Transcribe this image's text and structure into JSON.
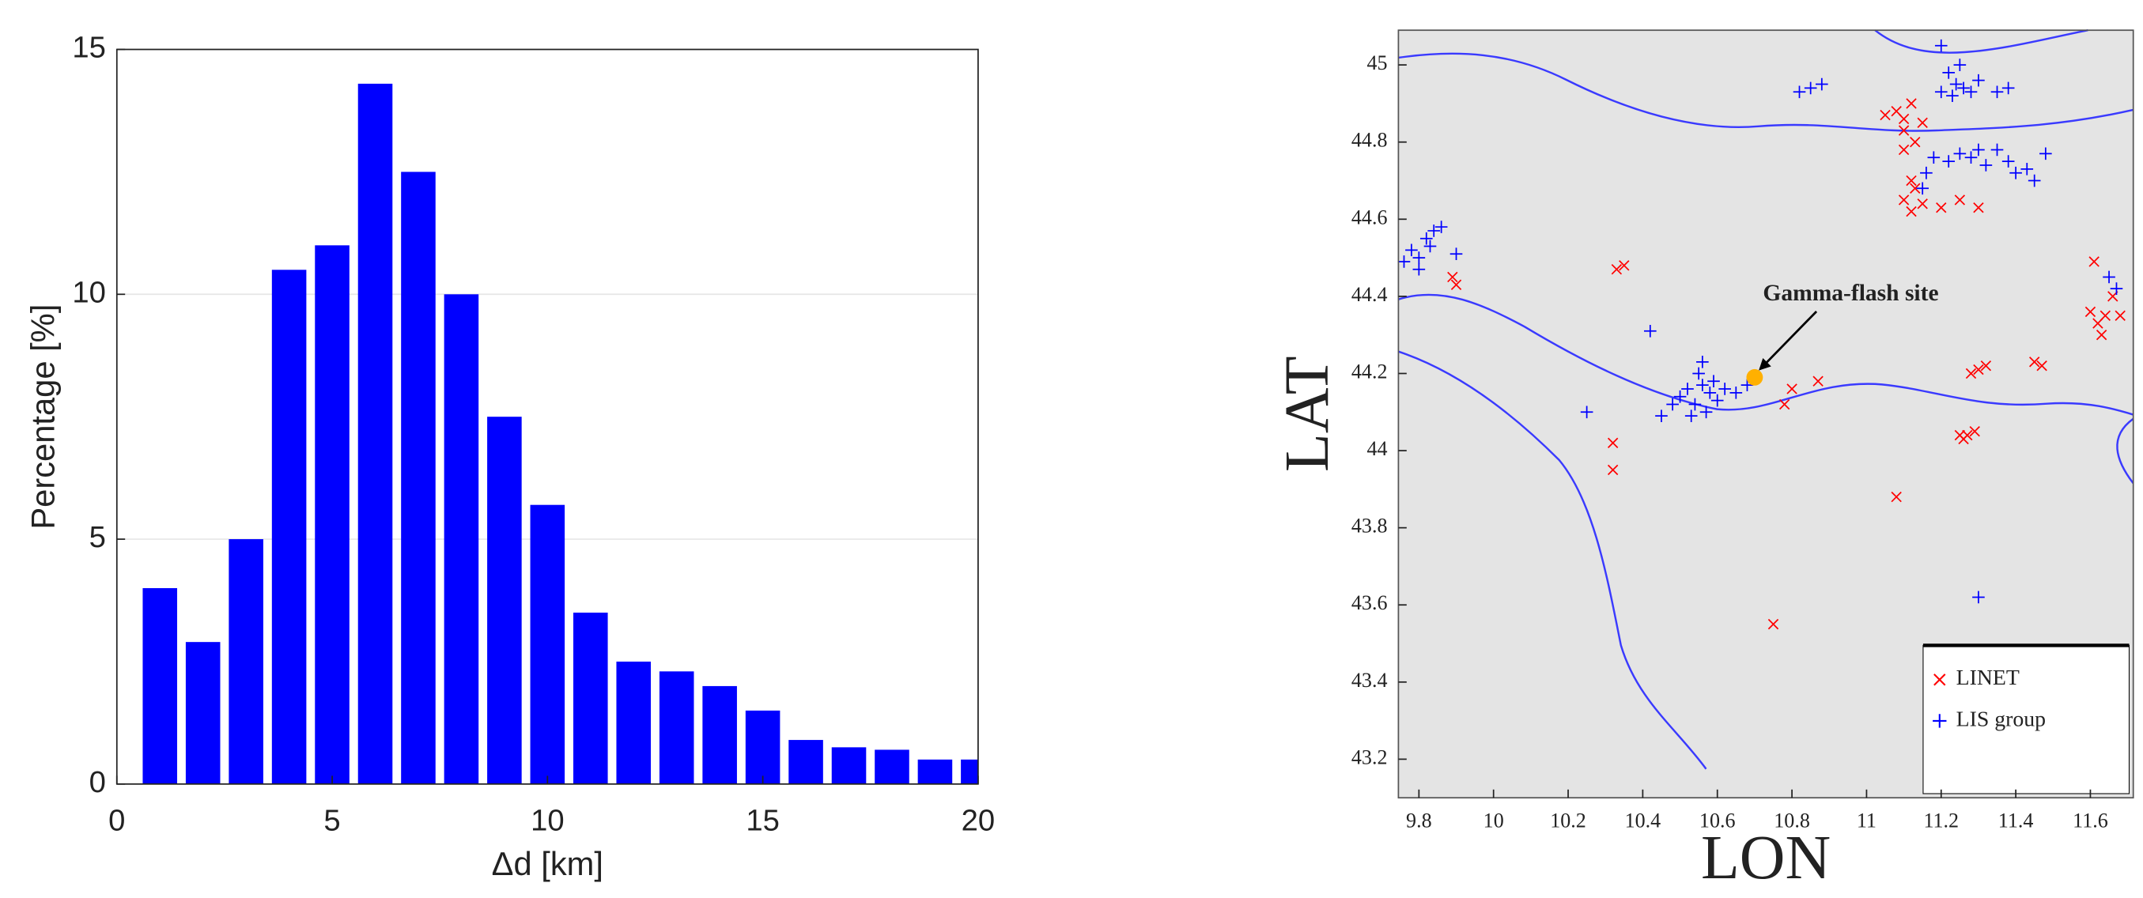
{
  "chart_data": [
    {
      "type": "bar",
      "xlabel": "Δd [km]",
      "ylabel": "Percentage [%]",
      "x": [
        1,
        2,
        3,
        4,
        5,
        6,
        7,
        8,
        9,
        10,
        11,
        12,
        13,
        14,
        15,
        16,
        17,
        18,
        19,
        20
      ],
      "values": [
        4,
        2.9,
        5,
        10.5,
        11,
        14.3,
        12.5,
        10,
        7.5,
        5.7,
        3.5,
        2.5,
        2.3,
        2.0,
        1.5,
        0.9,
        0.75,
        0.7,
        0.5,
        0.5
      ],
      "color": "#0000ff",
      "xlim": [
        0,
        20
      ],
      "ylim": [
        0,
        15
      ],
      "xticks": [
        0,
        5,
        10,
        15,
        20
      ],
      "yticks": [
        0,
        5,
        10,
        15
      ],
      "grid": true
    },
    {
      "type": "scatter",
      "xlabel": "LON",
      "ylabel": "LAT",
      "xlim": [
        9.745,
        11.715
      ],
      "ylim": [
        43.1,
        45.09
      ],
      "xticks": [
        9.8,
        10,
        10.2,
        10.4,
        10.6,
        10.8,
        11,
        11.2,
        11.4,
        11.6
      ],
      "yticks": [
        43.2,
        43.4,
        43.6,
        43.8,
        44,
        44.2,
        44.4,
        44.6,
        44.8,
        45
      ],
      "legend": "lower right",
      "series": [
        {
          "name": "LINET",
          "color": "#ff0000",
          "marker": "x",
          "x": [
            11.08,
            11.1,
            11.12,
            11.05,
            11.1,
            11.13,
            11.15,
            11.1,
            11.12,
            11.1,
            11.12,
            11.15,
            11.2,
            11.25,
            11.3,
            11.13,
            11.6,
            11.62,
            11.64,
            11.66,
            11.68,
            11.61,
            11.63,
            11.25,
            11.27,
            11.29,
            11.26,
            11.3,
            11.32,
            11.28,
            11.45,
            11.47,
            10.35,
            10.33,
            9.9,
            9.89,
            10.32,
            10.32,
            10.8,
            10.78,
            10.87,
            11.08,
            10.75
          ],
          "values": [
            44.88,
            44.86,
            44.9,
            44.87,
            44.83,
            44.8,
            44.85,
            44.78,
            44.7,
            44.65,
            44.62,
            44.64,
            44.63,
            44.65,
            44.63,
            44.68,
            44.36,
            44.33,
            44.35,
            44.4,
            44.35,
            44.49,
            44.3,
            44.04,
            44.04,
            44.05,
            44.03,
            44.21,
            44.22,
            44.2,
            44.23,
            44.22,
            44.48,
            44.47,
            44.43,
            44.45,
            44.02,
            43.95,
            44.16,
            44.12,
            44.18,
            43.88,
            43.55
          ]
        },
        {
          "name": "LIS group",
          "color": "#0000ff",
          "marker": "+",
          "x": [
            9.78,
            9.8,
            9.82,
            9.76,
            9.84,
            9.86,
            9.8,
            9.9,
            9.83,
            10.5,
            10.52,
            10.54,
            10.56,
            10.58,
            10.6,
            10.62,
            10.55,
            10.57,
            10.53,
            10.48,
            10.65,
            10.59,
            10.56,
            10.45,
            10.68,
            10.42,
            10.25,
            11.3,
            10.82,
            10.85,
            10.88,
            11.2,
            11.22,
            11.24,
            11.26,
            11.28,
            11.23,
            11.3,
            11.35,
            11.38,
            11.2,
            11.25,
            11.18,
            11.22,
            11.25,
            11.28,
            11.32,
            11.35,
            11.38,
            11.4,
            11.43,
            11.48,
            11.3,
            11.16,
            11.15,
            11.45,
            11.65,
            11.67
          ],
          "values": [
            44.52,
            44.5,
            44.55,
            44.49,
            44.57,
            44.58,
            44.47,
            44.51,
            44.53,
            44.14,
            44.16,
            44.12,
            44.17,
            44.15,
            44.13,
            44.16,
            44.2,
            44.1,
            44.09,
            44.12,
            44.15,
            44.18,
            44.23,
            44.09,
            44.17,
            44.31,
            44.1,
            43.62,
            44.93,
            44.94,
            44.95,
            45.05,
            44.98,
            44.95,
            44.94,
            44.93,
            44.92,
            44.96,
            44.93,
            44.94,
            44.93,
            45.0,
            44.76,
            44.75,
            44.77,
            44.76,
            44.74,
            44.78,
            44.75,
            44.72,
            44.73,
            44.77,
            44.78,
            44.72,
            44.68,
            44.7,
            44.45,
            44.42
          ]
        }
      ],
      "annotations": [
        {
          "text": "Gamma-flash site",
          "x": 10.7,
          "y": 44.19,
          "color": "#ffb000"
        }
      ]
    }
  ]
}
